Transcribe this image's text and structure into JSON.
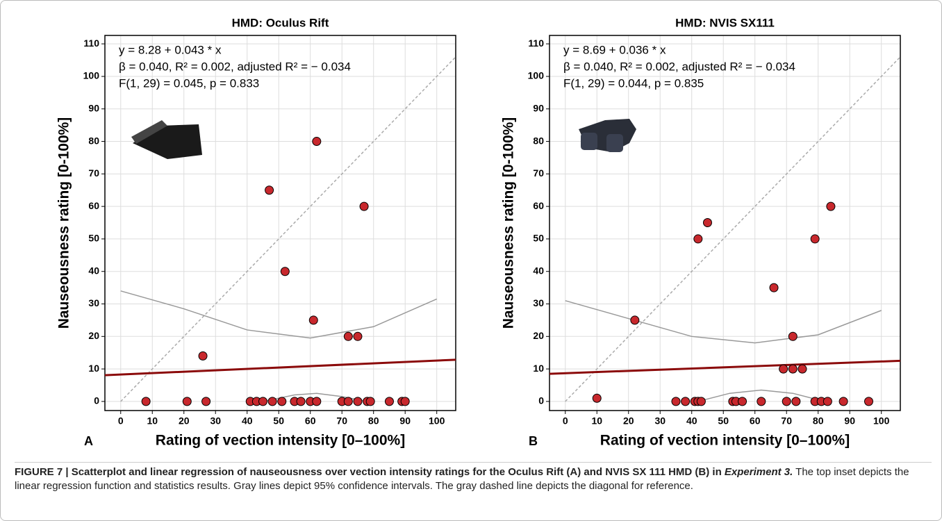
{
  "chart_data": [
    {
      "type": "scatter",
      "title": "HMD: Oculus Rift",
      "panel": "A",
      "xlabel": "Rating of vection intensity [0–100%]",
      "ylabel": "Nauseousness rating [0-100%]",
      "annotations": [
        "y = 8.28 + 0.043 * x",
        "β = 0.040, R² = 0.002, adjusted R² = − 0.034",
        "F(1, 29) = 0.045, p = 0.833"
      ],
      "x": [
        8,
        21,
        27,
        26,
        41,
        43,
        45,
        48,
        51,
        55,
        57,
        60,
        62,
        70,
        72,
        75,
        78,
        79,
        85,
        89,
        90,
        47,
        62,
        77,
        52,
        61,
        72,
        75
      ],
      "y": [
        0,
        0,
        0,
        14,
        0,
        0,
        0,
        0,
        0,
        0,
        0,
        0,
        0,
        0,
        0,
        0,
        0,
        0,
        0,
        0,
        0,
        65,
        80,
        60,
        40,
        25,
        20,
        20
      ],
      "color": "#c8282d",
      "lines": [
        {
          "x": [
            0,
            106
          ],
          "y": [
            0,
            106
          ],
          "color": "#aaaaaa",
          "dash": true
        },
        {
          "x": [
            0,
            20,
            40,
            60,
            80,
            100
          ],
          "y": [
            34,
            28.5,
            22,
            19.5,
            23,
            31.5
          ],
          "color": "#999999"
        },
        {
          "x": [
            45,
            55,
            62,
            70,
            78
          ],
          "y": [
            0,
            2,
            2.5,
            1.5,
            0
          ],
          "color": "#999999"
        },
        {
          "x": [
            -5,
            106
          ],
          "y": [
            8.07,
            12.84
          ],
          "color": "#8b0a0a"
        }
      ],
      "xlim": [
        -5,
        106
      ],
      "ylim": [
        -2.8,
        112.6
      ],
      "xticks": [
        0,
        10,
        20,
        30,
        40,
        50,
        60,
        70,
        80,
        90,
        100
      ],
      "yticks": [
        0,
        10,
        20,
        30,
        40,
        50,
        60,
        70,
        80,
        90,
        100,
        110
      ],
      "grid": true
    },
    {
      "type": "scatter",
      "title": "HMD: NVIS SX111",
      "panel": "B",
      "xlabel": "Rating of vection intensity [0–100%]",
      "ylabel": "Nauseousness rating [0-100%]",
      "annotations": [
        "y = 8.69 + 0.036 * x",
        "β = 0.040, R² = 0.002, adjusted R² = − 0.034",
        "F(1, 29) = 0.044, p = 0.835"
      ],
      "x": [
        10,
        22,
        35,
        38,
        41,
        42,
        43,
        53,
        54,
        56,
        62,
        70,
        73,
        79,
        81,
        83,
        88,
        96,
        42,
        45,
        66,
        72,
        69,
        72,
        75,
        79,
        84
      ],
      "y": [
        1,
        25,
        0,
        0,
        0,
        0,
        0,
        0,
        0,
        0,
        0,
        0,
        0,
        0,
        0,
        0,
        0,
        0,
        50,
        55,
        35,
        20,
        10,
        10,
        10,
        50,
        60
      ],
      "color": "#c8282d",
      "lines": [
        {
          "x": [
            0,
            106
          ],
          "y": [
            0,
            106
          ],
          "color": "#aaaaaa",
          "dash": true
        },
        {
          "x": [
            0,
            20,
            40,
            60,
            80,
            100
          ],
          "y": [
            31,
            25.5,
            20,
            18,
            20.5,
            28
          ],
          "color": "#999999"
        },
        {
          "x": [
            42,
            52,
            62,
            72,
            82
          ],
          "y": [
            0,
            2.5,
            3.5,
            2.5,
            0
          ],
          "color": "#999999"
        },
        {
          "x": [
            -5,
            106
          ],
          "y": [
            8.51,
            12.51
          ],
          "color": "#8b0a0a"
        }
      ],
      "xlim": [
        -5,
        106
      ],
      "ylim": [
        -2.8,
        112.6
      ],
      "xticks": [
        0,
        10,
        20,
        30,
        40,
        50,
        60,
        70,
        80,
        90,
        100
      ],
      "yticks": [
        0,
        10,
        20,
        30,
        40,
        50,
        60,
        70,
        80,
        90,
        100,
        110
      ],
      "grid": true
    }
  ],
  "caption": {
    "title": "FIGURE 7 | Scatterplot and linear regression of nauseousness over vection intensity ratings for the Oculus Rift (A) and NVIS SX 111 HMD (B) in ",
    "emphasis": "Experiment 3.",
    "text": " The top inset depicts the linear regression function and statistics results. Gray lines depict 95% confidence intervals. The gray dashed line depicts the diagonal for reference."
  }
}
